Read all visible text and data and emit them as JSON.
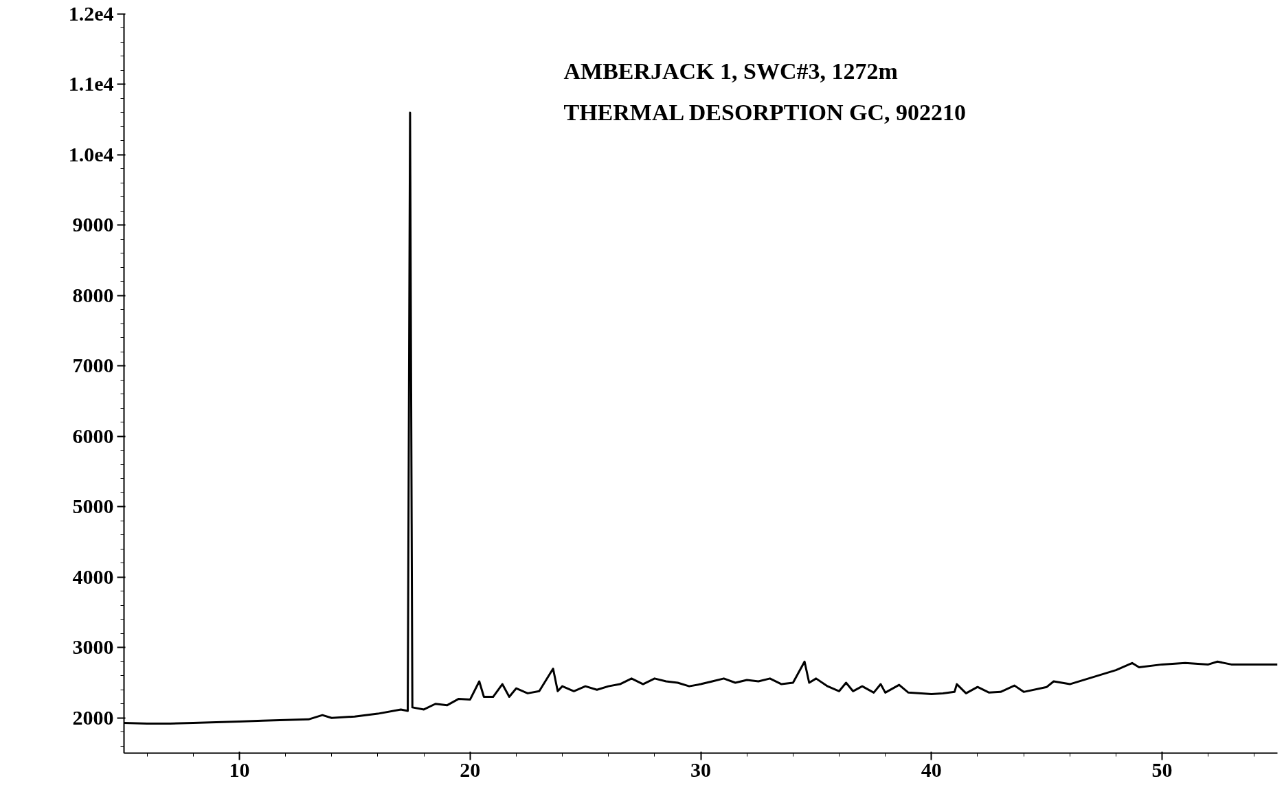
{
  "chart_data": {
    "type": "line",
    "annotations": [
      "AMBERJACK 1, SWC#3, 1272m",
      "THERMAL DESORPTION GC, 902210"
    ],
    "x": [
      5,
      6,
      7,
      8,
      9,
      10,
      11,
      12,
      13,
      13.6,
      14,
      15,
      16,
      17,
      17.3,
      17.4,
      17.5,
      18,
      18.5,
      19,
      19.5,
      20,
      20.4,
      20.6,
      21,
      21.4,
      21.7,
      22,
      22.5,
      23,
      23.6,
      23.8,
      24,
      24.5,
      25,
      25.5,
      26,
      26.5,
      27,
      27.5,
      28,
      28.5,
      29,
      29.5,
      30,
      30.5,
      31,
      31.5,
      32,
      32.5,
      33,
      33.5,
      34,
      34.5,
      34.7,
      35,
      35.5,
      36,
      36.3,
      36.6,
      37,
      37.5,
      37.8,
      38,
      38.6,
      39,
      40,
      40.5,
      41,
      41.1,
      41.5,
      42,
      42.5,
      43,
      43.6,
      44,
      45,
      45.3,
      46,
      47,
      48,
      48.7,
      49,
      50,
      51,
      52,
      52.4,
      53,
      54,
      55
    ],
    "series": [
      {
        "color": "#000000",
        "values": [
          1930,
          1920,
          1920,
          1930,
          1940,
          1950,
          1960,
          1970,
          1980,
          2040,
          2000,
          2020,
          2060,
          2120,
          2100,
          10600,
          2150,
          2120,
          2200,
          2180,
          2270,
          2260,
          2520,
          2300,
          2300,
          2480,
          2300,
          2420,
          2350,
          2380,
          2700,
          2380,
          2450,
          2380,
          2450,
          2400,
          2450,
          2480,
          2560,
          2480,
          2560,
          2520,
          2500,
          2450,
          2480,
          2520,
          2560,
          2500,
          2540,
          2520,
          2560,
          2480,
          2500,
          2800,
          2500,
          2560,
          2450,
          2380,
          2500,
          2380,
          2450,
          2360,
          2480,
          2360,
          2470,
          2360,
          2340,
          2350,
          2370,
          2480,
          2350,
          2440,
          2360,
          2370,
          2460,
          2370,
          2440,
          2520,
          2480,
          2580,
          2680,
          2780,
          2720,
          2760,
          2780,
          2760,
          2800,
          2760,
          2760,
          2760
        ]
      }
    ],
    "xlim": [
      5,
      55
    ],
    "xticks": [
      10,
      20,
      30,
      40,
      50
    ],
    "ylim": [
      1500,
      12000
    ],
    "yticks": [
      2000,
      3000,
      4000,
      5000,
      6000,
      7000,
      8000,
      9000,
      {
        "value": 10000,
        "label": "1.0e4"
      },
      {
        "value": 11000,
        "label": "1.1e4"
      },
      {
        "value": 12000,
        "label": "1.2e4"
      }
    ],
    "grid": false,
    "marker": "none",
    "line_style": "solid"
  }
}
